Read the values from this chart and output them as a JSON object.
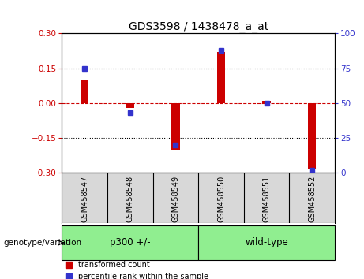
{
  "title": "GDS3598 / 1438478_a_at",
  "samples": [
    "GSM458547",
    "GSM458548",
    "GSM458549",
    "GSM458550",
    "GSM458551",
    "GSM458552"
  ],
  "red_values": [
    0.1,
    -0.02,
    -0.2,
    0.22,
    0.01,
    -0.28
  ],
  "blue_values_pct": [
    75,
    43,
    20,
    88,
    50,
    2
  ],
  "group_labels": [
    "p300 +/-",
    "wild-type"
  ],
  "group_ranges": [
    [
      0,
      2
    ],
    [
      3,
      5
    ]
  ],
  "group_color": "#90EE90",
  "ylim_left": [
    -0.3,
    0.3
  ],
  "ylim_right": [
    0,
    100
  ],
  "yticks_left": [
    -0.3,
    -0.15,
    0,
    0.15,
    0.3
  ],
  "yticks_right": [
    0,
    25,
    50,
    75,
    100
  ],
  "red_color": "#CC0000",
  "blue_color": "#3333CC",
  "zero_line_color": "#CC0000",
  "dotted_line_color": "black",
  "red_bar_width": 0.18,
  "sample_bg_color": "#d8d8d8",
  "legend_red": "transformed count",
  "legend_blue": "percentile rank within the sample",
  "genotype_label": "genotype/variation"
}
